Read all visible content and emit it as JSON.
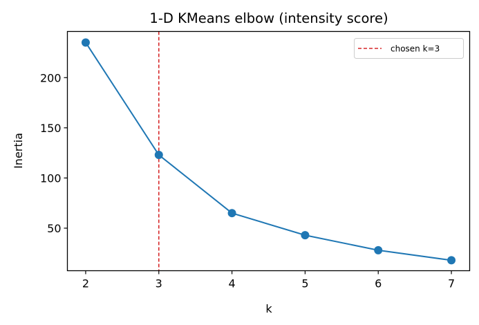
{
  "chart_data": {
    "type": "line",
    "title": "1-D KMeans elbow (intensity score)",
    "xlabel": "k",
    "ylabel": "Inertia",
    "x": [
      2,
      3,
      4,
      5,
      6,
      7
    ],
    "series": [
      {
        "name": "inertia",
        "values": [
          235,
          123,
          65,
          43,
          28,
          18
        ],
        "color": "#1f77b4",
        "marker": "circle"
      }
    ],
    "annotations": [
      {
        "type": "vline",
        "x": 3,
        "label": "chosen k=3",
        "color": "#d62728",
        "style": "dashed"
      }
    ],
    "xticks": [
      "2",
      "3",
      "4",
      "5",
      "6",
      "7"
    ],
    "yticks": [
      "50",
      "100",
      "150",
      "200"
    ],
    "xlim": [
      1.75,
      7.25
    ],
    "ylim": [
      7.6,
      246
    ],
    "grid": false,
    "legend": {
      "position": "upper right",
      "entries": [
        "chosen k=3"
      ]
    }
  }
}
